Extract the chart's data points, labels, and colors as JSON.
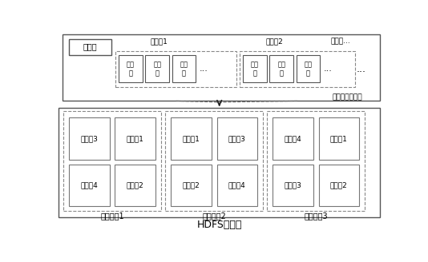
{
  "title": "HDFS存储池",
  "vm_image_label": "一个虚拟机镜像",
  "metadata_label": "元数据",
  "segment_file1_label": "段文件1",
  "segment_file2_label": "段文件2",
  "segment_file_dots_label": "段文件...",
  "data_block_label": "数据\n块",
  "dots_label": "...",
  "storage_nodes": [
    "存储节点1",
    "存储节点2",
    "存储节点3"
  ],
  "node1_files": [
    [
      "段文件3",
      "段文件1"
    ],
    [
      "段文件4",
      "段文件2"
    ]
  ],
  "node2_files": [
    [
      "段文件1",
      "段文件3"
    ],
    [
      "段文件2",
      "段文件4"
    ]
  ],
  "node3_files": [
    [
      "段文件4",
      "段文件1"
    ],
    [
      "段文件3",
      "段文件2"
    ]
  ],
  "bg_color": "#ffffff",
  "edge_color_solid": "#555555",
  "edge_color_dashed": "#999999",
  "arrow_color": "#222222",
  "font_size": 7,
  "title_font_size": 9
}
